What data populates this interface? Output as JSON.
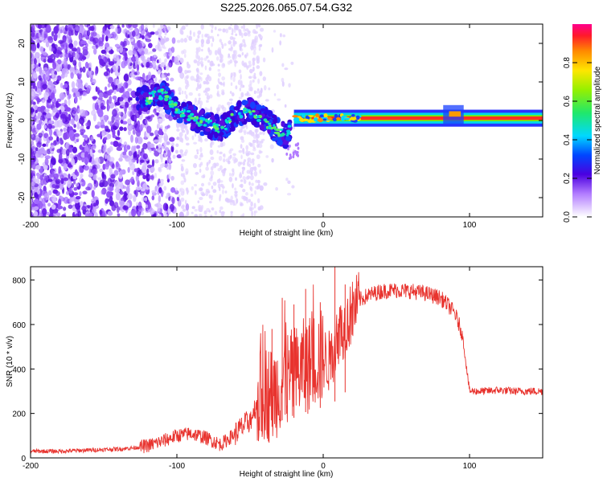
{
  "title": "S225.2026.065.07.54.G32",
  "chart_data": [
    {
      "type": "heatmap",
      "xlabel": "Height of straight line (km)",
      "ylabel": "Frequency (Hz)",
      "xlim": [
        -200,
        150
      ],
      "ylim": [
        -25,
        25
      ],
      "xticks": [
        -200,
        -100,
        0,
        100
      ],
      "yticks": [
        -20,
        -10,
        0,
        10,
        20
      ],
      "ridge": [
        {
          "x": -125,
          "y": 5
        },
        {
          "x": -110,
          "y": 7
        },
        {
          "x": -100,
          "y": 3
        },
        {
          "x": -90,
          "y": 1
        },
        {
          "x": -80,
          "y": -1
        },
        {
          "x": -70,
          "y": -2
        },
        {
          "x": -60,
          "y": 1
        },
        {
          "x": -50,
          "y": 3
        },
        {
          "x": -40,
          "y": 0
        },
        {
          "x": -30,
          "y": -3
        },
        {
          "x": -25,
          "y": -4
        },
        {
          "x": -20,
          "y": 0.5
        },
        {
          "x": 0,
          "y": 0.5
        },
        {
          "x": 50,
          "y": 0.5
        },
        {
          "x": 90,
          "y": 1.5
        },
        {
          "x": 95,
          "y": 1
        },
        {
          "x": 150,
          "y": 0.5
        }
      ],
      "colorbar": {
        "label": "Normalized spectral amplitude",
        "range": [
          0,
          1
        ],
        "ticks": [
          "0.0",
          "0.2",
          "0.4",
          "0.6",
          "0.8"
        ],
        "tick_values": [
          0.0,
          0.2,
          0.4,
          0.6,
          0.8
        ]
      }
    },
    {
      "type": "line",
      "xlabel": "Height of straight line (km)",
      "ylabel": "SNR (10 * v/v)",
      "xlim": [
        -200,
        150
      ],
      "ylim": [
        0,
        860
      ],
      "xticks": [
        -200,
        -100,
        0,
        100
      ],
      "yticks": [
        0,
        200,
        400,
        600,
        800
      ],
      "series": [
        {
          "name": "SNR",
          "color": "#e8332e",
          "x": [
            -200,
            -180,
            -160,
            -140,
            -130,
            -120,
            -110,
            -100,
            -90,
            -80,
            -70,
            -60,
            -55,
            -50,
            -45,
            -40,
            -35,
            -30,
            -25,
            -20,
            -15,
            -10,
            -5,
            0,
            5,
            10,
            15,
            20,
            25,
            30,
            40,
            50,
            60,
            70,
            80,
            85,
            90,
            95,
            100,
            110,
            120,
            130,
            140,
            150
          ],
          "y": [
            30,
            30,
            35,
            40,
            45,
            55,
            75,
            100,
            110,
            90,
            60,
            110,
            140,
            170,
            250,
            300,
            280,
            330,
            350,
            360,
            400,
            420,
            450,
            450,
            430,
            560,
            590,
            660,
            710,
            730,
            750,
            755,
            750,
            740,
            720,
            690,
            650,
            560,
            300,
            300,
            305,
            300,
            300,
            300
          ]
        }
      ],
      "peaks": [
        {
          "x": -35,
          "y": 580
        },
        {
          "x": -28,
          "y": 720
        },
        {
          "x": -20,
          "y": 690
        },
        {
          "x": -12,
          "y": 760
        },
        {
          "x": -2,
          "y": 700
        },
        {
          "x": 8,
          "y": 860
        },
        {
          "x": 15,
          "y": 780
        }
      ]
    }
  ]
}
